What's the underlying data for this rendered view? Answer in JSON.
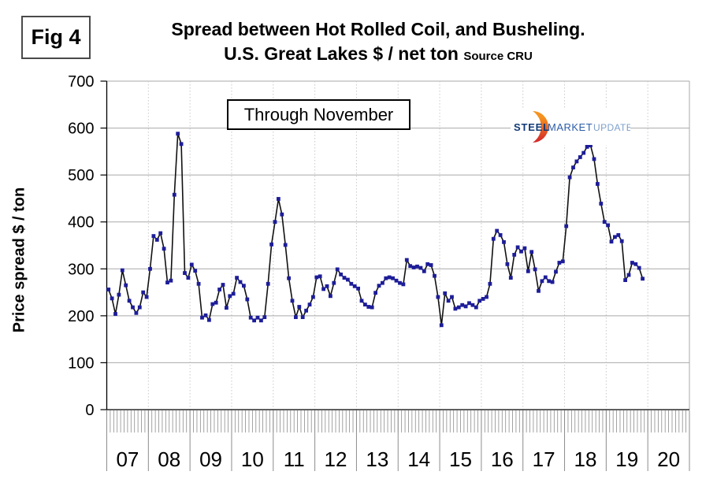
{
  "fig": {
    "label": "Fig 4"
  },
  "title": {
    "line1": "Spread between Hot Rolled Coil, and Busheling.",
    "line2": "U.S. Great Lakes  $ / net ton",
    "source": "Source CRU"
  },
  "annotation": {
    "text": "Through November"
  },
  "logo": {
    "steel": "STEEL",
    "market": "MARKET",
    "update": "UPDATE",
    "steel_color": "#123A75",
    "market_color": "#2B5CA8",
    "update_color": "#7D9FCA",
    "crescent_top_color": "#F6921E",
    "crescent_bottom_color": "#D2232A"
  },
  "chart_data": {
    "type": "line",
    "title": "Spread between Hot Rolled Coil, and Busheling. U.S. Great Lakes $ / net ton",
    "source": "CRU",
    "xlabel": "",
    "ylabel": "Price spread $ / ton",
    "ylim": [
      0,
      700
    ],
    "y_ticks": [
      0,
      100,
      200,
      300,
      400,
      500,
      600,
      700
    ],
    "x_year_labels": [
      "07",
      "08",
      "09",
      "10",
      "11",
      "12",
      "13",
      "14",
      "15",
      "16",
      "17",
      "18",
      "19",
      "20"
    ],
    "frequency": "monthly",
    "start": "2007-01",
    "end": "2019-11",
    "grid": true,
    "legend": false,
    "line_color": "#111111",
    "marker_color": "#1D1D99",
    "series": [
      {
        "name": "HRC minus Busheling price spread ($/net ton)",
        "values": [
          256,
          237,
          204,
          245,
          297,
          265,
          232,
          218,
          206,
          218,
          250,
          240,
          300,
          370,
          362,
          376,
          343,
          271,
          275,
          458,
          588,
          566,
          291,
          281,
          309,
          296,
          268,
          196,
          201,
          191,
          225,
          228,
          256,
          266,
          217,
          242,
          247,
          281,
          272,
          264,
          235,
          196,
          190,
          196,
          190,
          197,
          268,
          352,
          400,
          449,
          416,
          351,
          280,
          232,
          197,
          219,
          197,
          211,
          224,
          240,
          282,
          284,
          257,
          263,
          242,
          270,
          299,
          288,
          281,
          277,
          268,
          263,
          258,
          232,
          224,
          219,
          218,
          249,
          264,
          270,
          280,
          282,
          280,
          275,
          270,
          267,
          319,
          306,
          303,
          305,
          302,
          295,
          310,
          308,
          285,
          240,
          180,
          248,
          232,
          240,
          215,
          218,
          223,
          220,
          227,
          223,
          218,
          232,
          236,
          240,
          268,
          364,
          381,
          372,
          357,
          310,
          281,
          330,
          346,
          337,
          344,
          295,
          336,
          299,
          253,
          274,
          282,
          274,
          272,
          294,
          313,
          316,
          391,
          495,
          516,
          529,
          538,
          547,
          560,
          563,
          534,
          481,
          439,
          400,
          393,
          358,
          368,
          372,
          359,
          276,
          287,
          313,
          310,
          302,
          279
        ]
      }
    ]
  }
}
